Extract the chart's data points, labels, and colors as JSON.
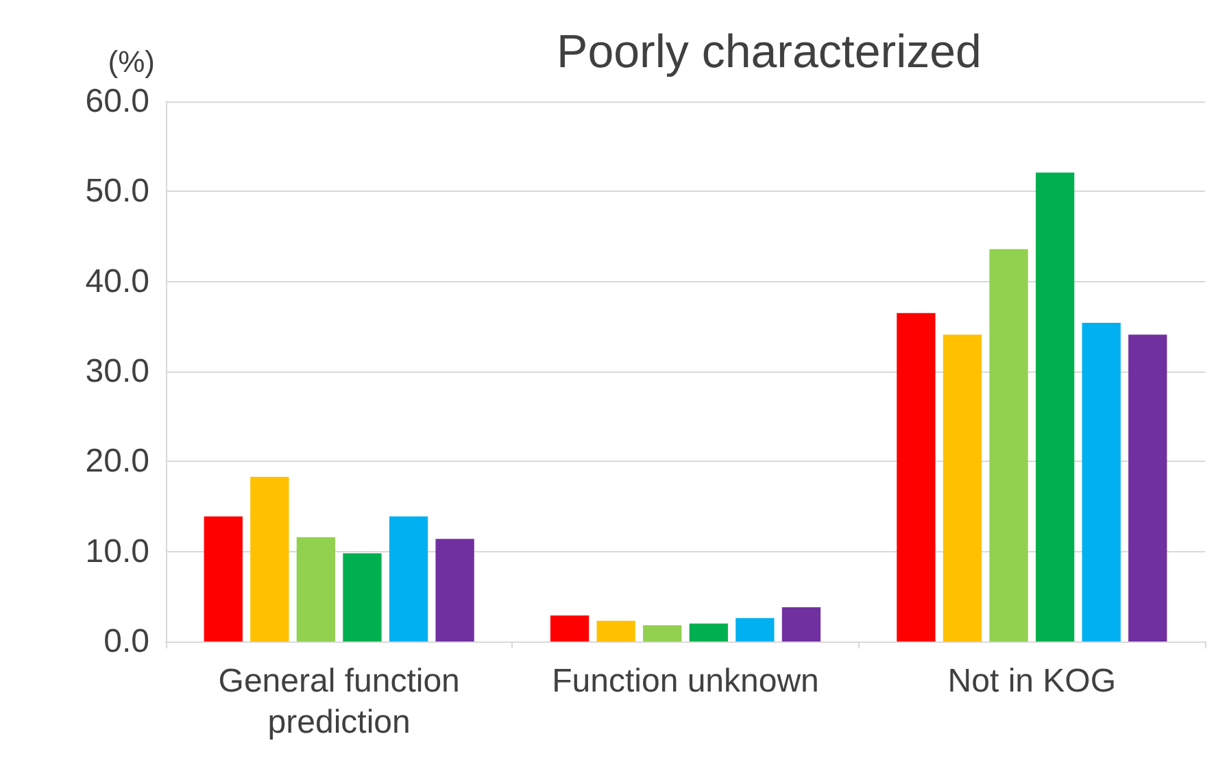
{
  "chart_data": {
    "type": "bar",
    "title": "Poorly characterized",
    "ylabel": "(%)",
    "categories": [
      "General function prediction",
      "Function unknown",
      "Not in KOG"
    ],
    "series": [
      {
        "color": "#ff0000",
        "values": [
          13.9,
          2.9,
          36.5
        ]
      },
      {
        "color": "#ffc000",
        "values": [
          18.3,
          2.3,
          34.1
        ]
      },
      {
        "color": "#92d050",
        "values": [
          11.6,
          1.8,
          43.6
        ]
      },
      {
        "color": "#00b050",
        "values": [
          9.8,
          2.0,
          52.1
        ]
      },
      {
        "color": "#00b0f0",
        "values": [
          13.9,
          2.6,
          35.4
        ]
      },
      {
        "color": "#7030a0",
        "values": [
          11.4,
          3.8,
          34.1
        ]
      }
    ],
    "ylim": [
      0,
      60
    ],
    "yticks": [
      {
        "value": 0,
        "label": "0.0"
      },
      {
        "value": 10,
        "label": "10.0"
      },
      {
        "value": 20,
        "label": "20.0"
      },
      {
        "value": 30,
        "label": "30.0"
      },
      {
        "value": 40,
        "label": "40.0"
      },
      {
        "value": 50,
        "label": "50.0"
      },
      {
        "value": 60,
        "label": "60.0"
      }
    ],
    "grid": "y"
  }
}
